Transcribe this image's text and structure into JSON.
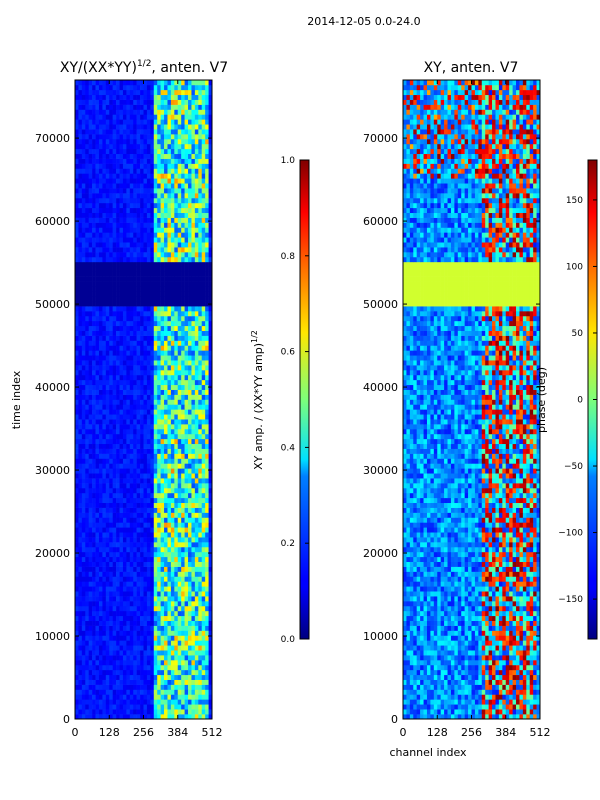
{
  "figure": {
    "suptitle": "2014-12-05 0.0-24.0"
  },
  "chart_data": [
    {
      "type": "heatmap",
      "title": "XY/(XX*YY)",
      "title_exponent": "1/2",
      "title_suffix": ", anten. V7",
      "xlabel": "",
      "ylabel": "time index",
      "xlim": [
        0,
        512
      ],
      "ylim": [
        0,
        77000
      ],
      "xticks": [
        0,
        128,
        256,
        384,
        512
      ],
      "yticks": [
        0,
        10000,
        20000,
        30000,
        40000,
        50000,
        60000,
        70000
      ],
      "data_gap": [
        50000,
        55000
      ],
      "colorbar": {
        "label": "XY amp. / (XX*YY amp)",
        "label_exponent": "1/2",
        "range": [
          0.0,
          1.0
        ],
        "ticks": [
          0.0,
          0.2,
          0.4,
          0.6,
          0.8,
          1.0
        ],
        "tick_labels": [
          "0.0",
          "0.2",
          "0.4",
          "0.6",
          "0.8",
          "1.0"
        ],
        "colormap": "jet"
      }
    },
    {
      "type": "heatmap",
      "title": "XY, anten. V7",
      "xlabel": "channel index",
      "ylabel": "",
      "xlim": [
        0,
        512
      ],
      "ylim": [
        0,
        77000
      ],
      "xticks": [
        0,
        128,
        256,
        384,
        512
      ],
      "yticks": [
        0,
        10000,
        20000,
        30000,
        40000,
        50000,
        60000,
        70000
      ],
      "data_gap": [
        50000,
        55000
      ],
      "colorbar": {
        "label": "phase (deg)",
        "range": [
          -180,
          180
        ],
        "ticks": [
          -150,
          -100,
          -50,
          0,
          50,
          100,
          150
        ],
        "tick_labels": [
          "−150",
          "−100",
          "−50",
          "0",
          "50",
          "100",
          "150"
        ],
        "colormap": "jet"
      }
    }
  ]
}
